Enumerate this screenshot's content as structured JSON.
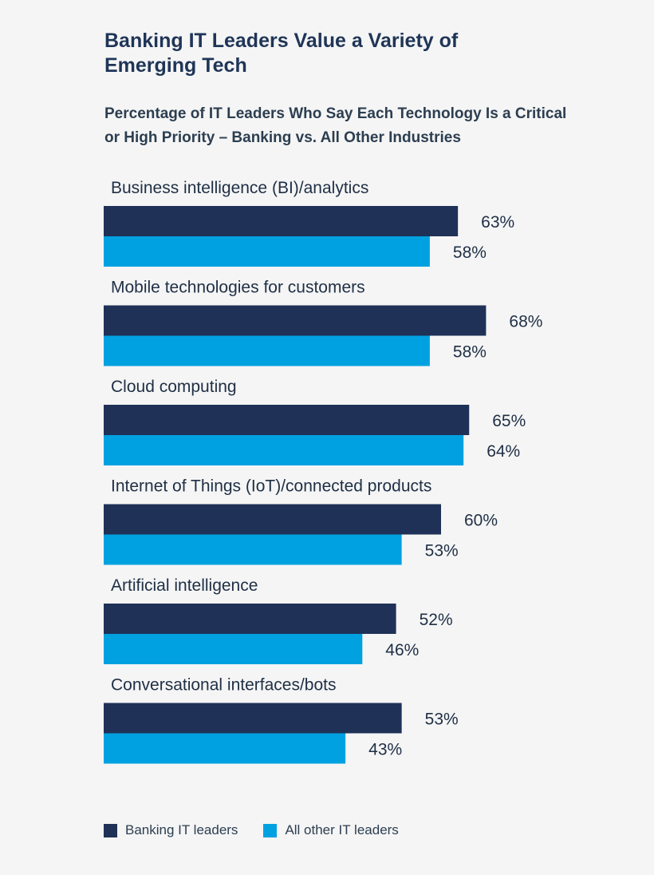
{
  "title": "Banking IT Leaders Value a Variety of Emerging Tech",
  "subtitle": "Percentage of IT Leaders Who Say Each Technology Is a Critical or High Priority – Banking vs. All Other Industries",
  "colors": {
    "banking": "#1f3157",
    "other": "#00a1e0"
  },
  "legend": [
    {
      "label": "Banking IT leaders",
      "color": "#1f3157"
    },
    {
      "label": "All other IT leaders",
      "color": "#00a1e0"
    }
  ],
  "chart_data": {
    "type": "bar",
    "orientation": "horizontal",
    "categories": [
      "Business intelligence (BI)/analytics",
      "Mobile technologies for customers",
      "Cloud computing",
      "Internet of Things (IoT)/connected products",
      "Artificial intelligence",
      "Conversational interfaces/bots"
    ],
    "series": [
      {
        "name": "Banking IT leaders",
        "values": [
          63,
          68,
          65,
          60,
          52,
          53
        ]
      },
      {
        "name": "All other IT leaders",
        "values": [
          58,
          58,
          64,
          53,
          46,
          43
        ]
      }
    ],
    "value_suffix": "%",
    "xlim": [
      0,
      100
    ],
    "title": "Percentage of IT Leaders Who Say Each Technology Is a Critical or High Priority – Banking vs. All Other Industries",
    "legend_position": "bottom-left"
  }
}
